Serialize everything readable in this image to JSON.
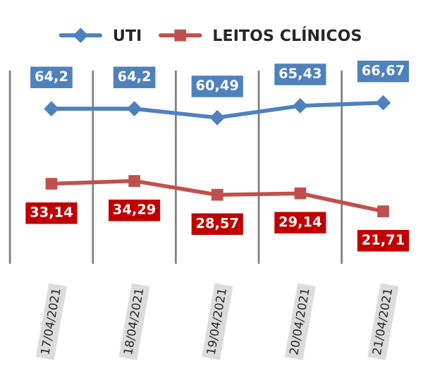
{
  "chart_data": {
    "type": "line",
    "categories": [
      "17/04/2021",
      "18/04/2021",
      "19/04/2021",
      "20/04/2021",
      "21/04/2021"
    ],
    "series": [
      {
        "name": "UTI",
        "color": "#4f81bd",
        "marker": "diamond",
        "values": [
          64.2,
          64.2,
          60.49,
          65.43,
          66.67
        ],
        "value_labels": [
          "64,2",
          "64,2",
          "60,49",
          "65,43",
          "66,67"
        ]
      },
      {
        "name": "LEITOS CLÍNICOS",
        "color": "#c0504d",
        "marker": "square",
        "values": [
          33.14,
          34.29,
          28.57,
          29.14,
          21.71
        ],
        "value_labels": [
          "33,14",
          "34,29",
          "28,57",
          "29,14",
          "21,71"
        ]
      }
    ],
    "grid": "x",
    "legend": "top"
  }
}
